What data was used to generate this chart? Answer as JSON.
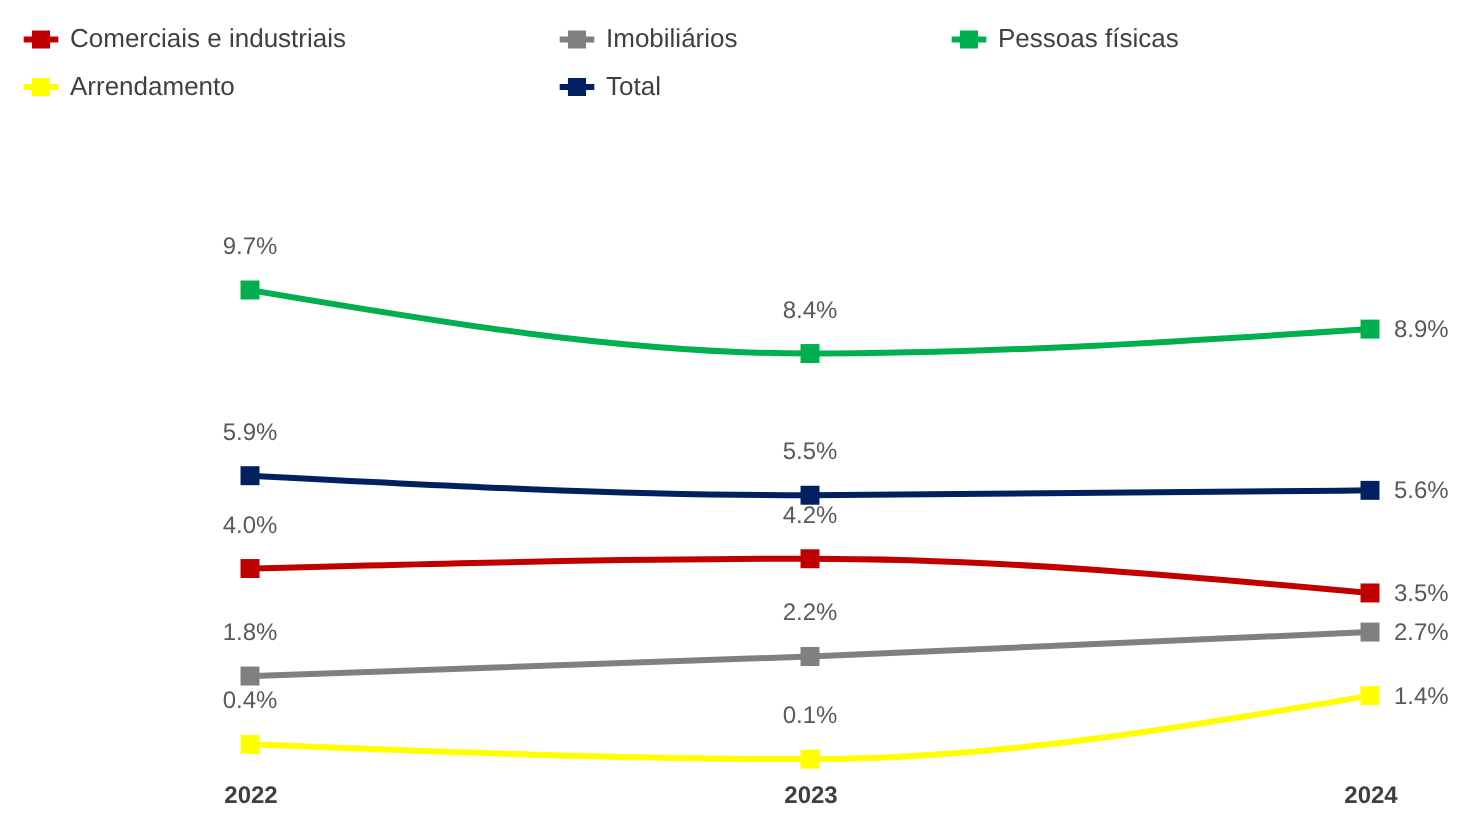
{
  "chart_data": {
    "type": "line",
    "categories": [
      "2022",
      "2023",
      "2024"
    ],
    "tick_labels": "x",
    "legend": "top",
    "marker": "square",
    "line_style": "solid",
    "grid": false,
    "series": [
      {
        "name": "Comerciais e industriais",
        "color": "#c00000",
        "values": [
          4.0,
          4.2,
          3.5
        ],
        "value_labels": [
          "4.0%",
          "4.2%",
          "3.5%"
        ]
      },
      {
        "name": "Imobiliários",
        "color": "#808080",
        "values": [
          1.8,
          2.2,
          2.7
        ],
        "value_labels": [
          "1.8%",
          "2.2%",
          "2.7%"
        ]
      },
      {
        "name": "Pessoas físicas",
        "color": "#00b050",
        "values": [
          9.7,
          8.4,
          8.9
        ],
        "value_labels": [
          "9.7%",
          "8.4%",
          "8.9%"
        ]
      },
      {
        "name": "Arrendamento",
        "color": "#ffff00",
        "values": [
          0.4,
          0.1,
          1.4
        ],
        "value_labels": [
          "0.4%",
          "0.1%",
          "1.4%"
        ]
      },
      {
        "name": "Total",
        "color": "#002060",
        "values": [
          5.9,
          5.5,
          5.6
        ],
        "value_labels": [
          "5.9%",
          "5.5%",
          "5.6%"
        ]
      }
    ]
  }
}
